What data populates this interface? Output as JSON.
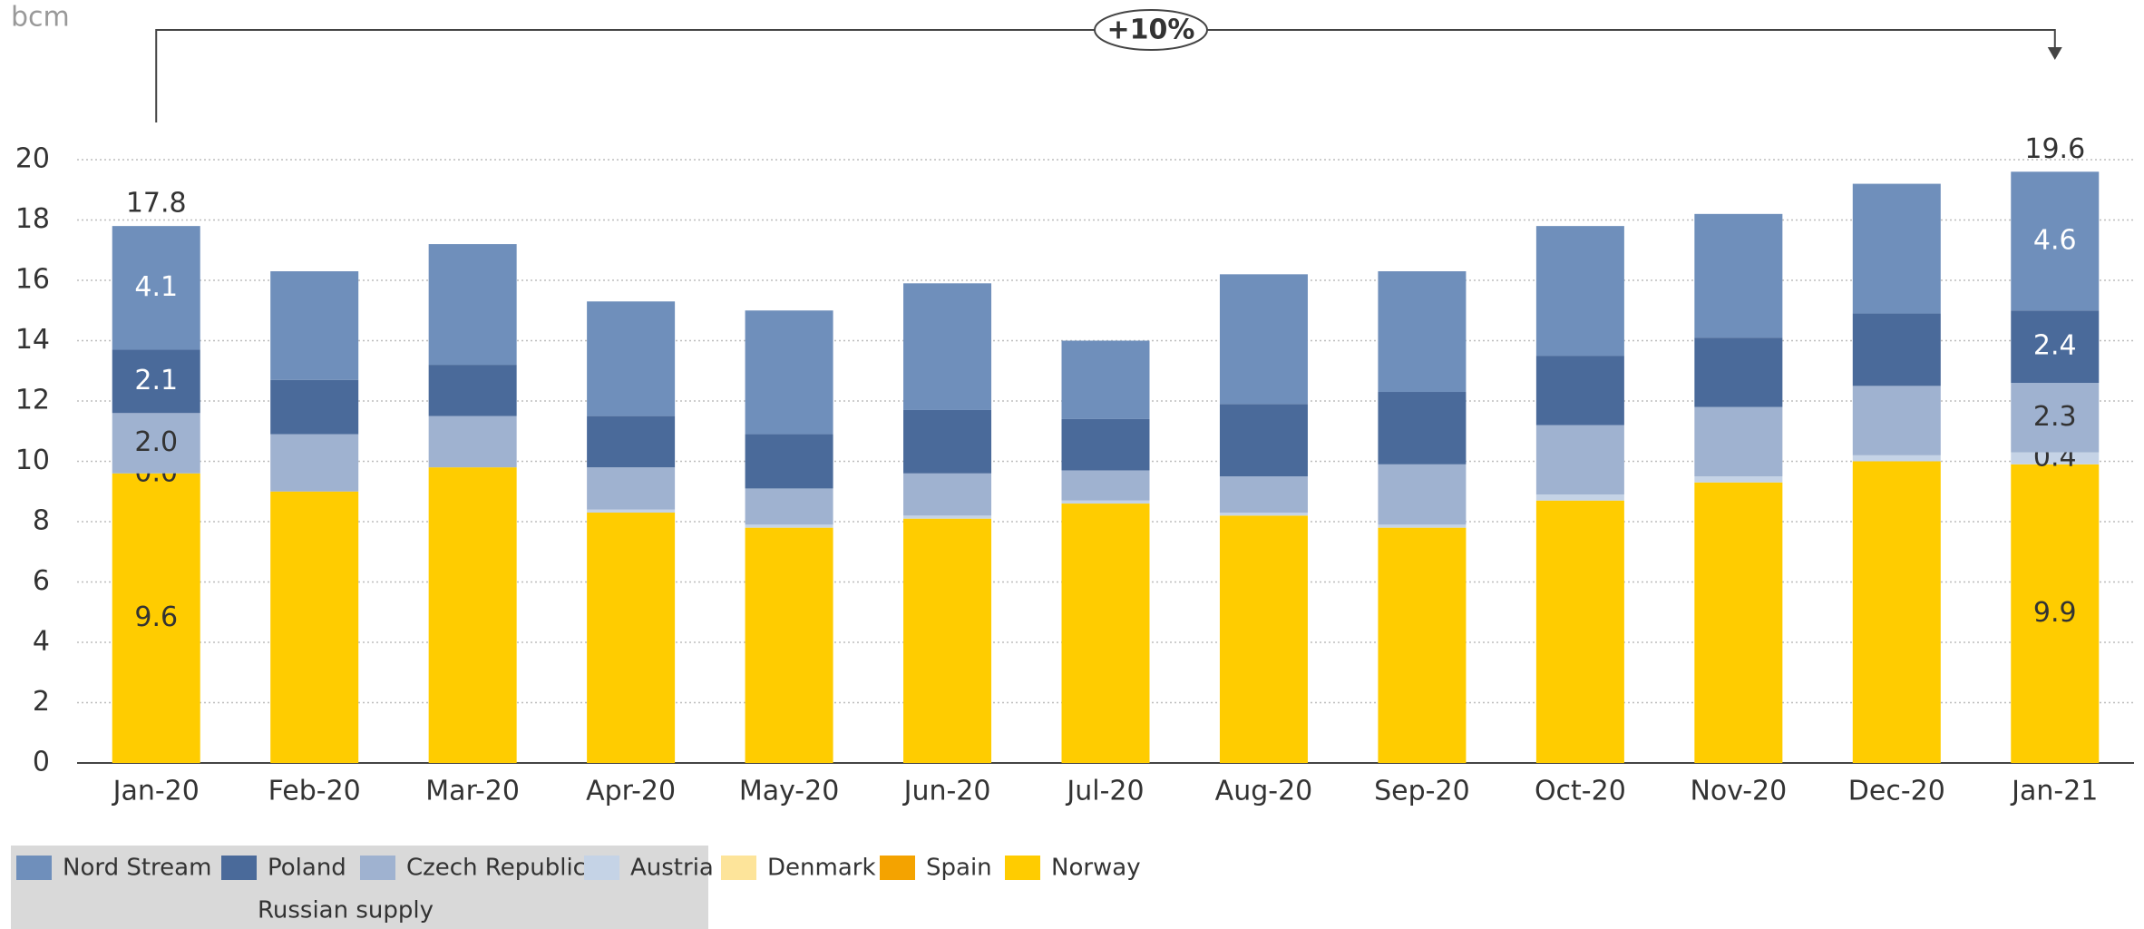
{
  "chart_data": {
    "type": "stacked_bar",
    "y_label": "bcm",
    "annotation": "+10%",
    "legend_group": "Russian supply",
    "categories": [
      "Jan-20",
      "Feb-20",
      "Mar-20",
      "Apr-20",
      "May-20",
      "Jun-20",
      "Jul-20",
      "Aug-20",
      "Sep-20",
      "Oct-20",
      "Nov-20",
      "Dec-20",
      "Jan-21"
    ],
    "series": [
      {
        "name": "Norway",
        "color": "#ffcc00",
        "values": [
          9.6,
          9.0,
          9.8,
          8.3,
          7.8,
          8.1,
          8.6,
          8.2,
          7.8,
          8.7,
          9.3,
          10.0,
          9.9
        ],
        "value_labels": [
          "9.6",
          null,
          null,
          null,
          null,
          null,
          null,
          null,
          null,
          null,
          null,
          null,
          "9.9"
        ]
      },
      {
        "name": "Spain",
        "color": "#f4a300",
        "values": [
          0,
          0,
          0,
          0,
          0,
          0,
          0,
          0,
          0,
          0,
          0,
          0,
          0
        ]
      },
      {
        "name": "Denmark",
        "color": "#fde49a",
        "values": [
          0,
          0,
          0,
          0,
          0,
          0,
          0,
          0,
          0,
          0,
          0,
          0,
          0
        ]
      },
      {
        "name": "Austria",
        "color": "#c5d3e6",
        "values": [
          0.0,
          0.0,
          0.0,
          0.1,
          0.1,
          0.1,
          0.1,
          0.1,
          0.1,
          0.2,
          0.2,
          0.2,
          0.4
        ],
        "value_labels": [
          "0.0",
          null,
          null,
          null,
          null,
          null,
          null,
          null,
          null,
          null,
          null,
          null,
          "0.4"
        ]
      },
      {
        "name": "Czech Republic",
        "color": "#9fb2d0",
        "values": [
          2.0,
          1.9,
          1.7,
          1.4,
          1.2,
          1.4,
          1.0,
          1.2,
          2.0,
          2.3,
          2.3,
          2.3,
          2.3
        ],
        "value_labels": [
          "2.0",
          null,
          null,
          null,
          null,
          null,
          null,
          null,
          null,
          null,
          null,
          null,
          "2.3"
        ]
      },
      {
        "name": "Poland",
        "color": "#4a6a9a",
        "values": [
          2.1,
          1.8,
          1.7,
          1.7,
          1.8,
          2.1,
          1.7,
          2.4,
          2.4,
          2.3,
          2.3,
          2.4,
          2.4
        ],
        "value_labels": [
          "2.1",
          null,
          null,
          null,
          null,
          null,
          null,
          null,
          null,
          null,
          null,
          null,
          "2.4"
        ]
      },
      {
        "name": "Nord Stream",
        "color": "#6f8fbb",
        "values": [
          4.1,
          3.6,
          4.0,
          3.8,
          4.1,
          4.2,
          2.6,
          4.3,
          4.0,
          4.3,
          4.1,
          4.3,
          4.6
        ],
        "value_labels": [
          "4.1",
          null,
          null,
          null,
          null,
          null,
          null,
          null,
          null,
          null,
          null,
          null,
          "4.6"
        ]
      }
    ],
    "totals": [
      17.8,
      null,
      null,
      null,
      null,
      null,
      null,
      null,
      null,
      null,
      null,
      null,
      19.6
    ],
    "legend_order": [
      6,
      5,
      4,
      3,
      2,
      1,
      0
    ],
    "legend_group_members": [
      6,
      5,
      4,
      3
    ],
    "ylim": [
      0,
      22.3
    ],
    "yticks": [
      0,
      2,
      4,
      6,
      8,
      10,
      12,
      14,
      16,
      18,
      20
    ],
    "grid": true
  }
}
